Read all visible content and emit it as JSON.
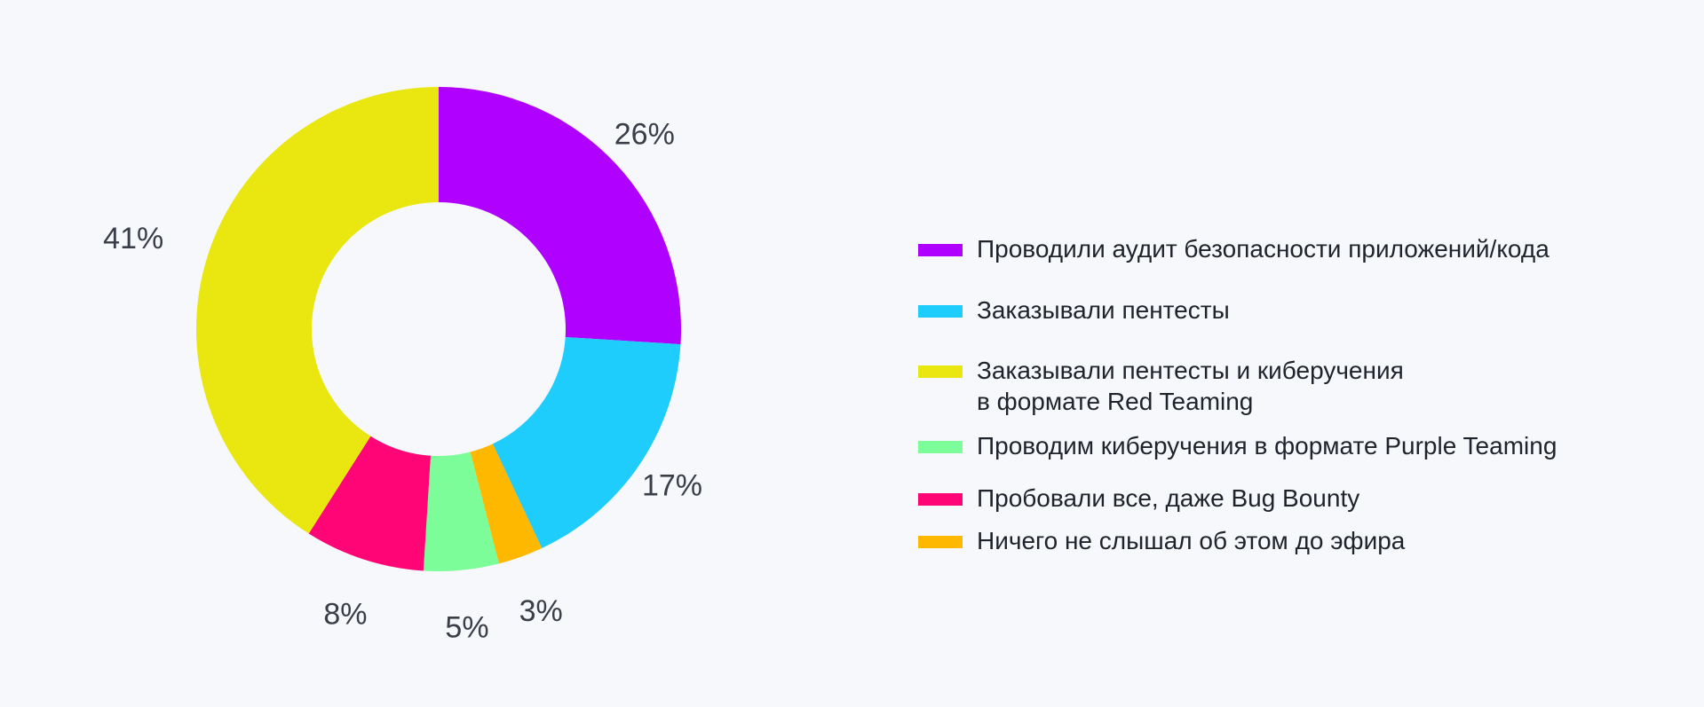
{
  "chart_data": {
    "type": "pie",
    "donut": true,
    "legend_position": "right",
    "slices": [
      {
        "label": "Проводили аудит безопасности приложений/кода",
        "value": 26,
        "display": "26%",
        "color": "#b000ff"
      },
      {
        "label": "Заказывали пентесты",
        "value": 17,
        "display": "17%",
        "color": "#1fcdfc"
      },
      {
        "label": "Ничего не слышал об этом до эфира",
        "value": 3,
        "display": "3%",
        "color": "#ffb800"
      },
      {
        "label": "Проводим киберучения в формате Purple Teaming",
        "value": 5,
        "display": "5%",
        "color": "#7dfd9a"
      },
      {
        "label": "Пробовали все, даже Bug Bounty",
        "value": 8,
        "display": "8%",
        "color": "#ff0575"
      },
      {
        "label": "Заказывали пентесты и киберучения\nв формате Red Teaming",
        "value": 41,
        "display": "41%",
        "color": "#e9e70f"
      }
    ]
  },
  "legend": {
    "items": [
      {
        "label": "Проводили аудит безопасности приложений/кода",
        "color": "#b000ff"
      },
      {
        "label": "Заказывали пентесты",
        "color": "#1fcdfc"
      },
      {
        "label": "Заказывали пентесты и киберучения\nв формате Red Teaming",
        "color": "#e9e70f"
      },
      {
        "label": "Проводим киберучения в формате Purple Teaming",
        "color": "#7dfd9a"
      },
      {
        "label": "Пробовали все, даже Bug Bounty",
        "color": "#ff0575"
      },
      {
        "label": "Ничего не слышал об этом до эфира",
        "color": "#ffb800"
      }
    ]
  }
}
